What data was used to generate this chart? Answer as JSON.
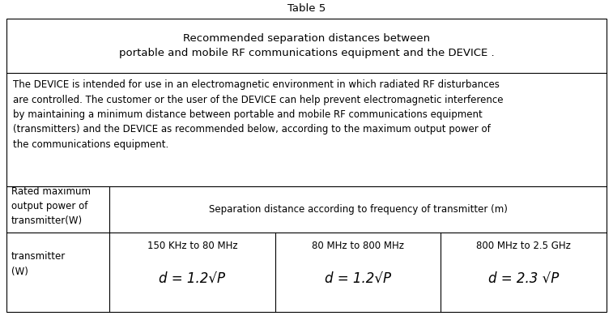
{
  "title": "Table 5",
  "header_text": "Recommended separation distances between\nportable and mobile RF communications equipment and the DEVICE .",
  "description": "The DEVICE is intended for use in an electromagnetic environment in which radiated RF disturbances\nare controlled. The customer or the user of the DEVICE can help prevent electromagnetic interference\nby maintaining a minimum distance between portable and mobile RF communications equipment\n(transmitters) and the DEVICE as recommended below, according to the maximum output power of\nthe communications equipment.",
  "col0_header": "Rated maximum\noutput power of\ntransmitter(W)",
  "col1_header": "Separation distance according to frequency of transmitter (m)",
  "row_col0": "transmitter\n(W)",
  "row_col1_label": "150 KHz to 80 MHz",
  "row_col2_label": "80 MHz to 800 MHz",
  "row_col3_label": "800 MHz to 2.5 GHz",
  "row_col1_formula": "d = 1.2√P",
  "row_col2_formula": "d = 1.2√P",
  "row_col3_formula": "d = 2.3 √P",
  "bg_color": "#ffffff",
  "border_color": "#000000",
  "text_color": "#000000",
  "title_fontsize": 9.5,
  "header_fontsize": 9.5,
  "desc_fontsize": 8.5,
  "cell_fontsize": 8.5,
  "formula_fontsize": 12,
  "fig_width": 7.57,
  "fig_height": 3.95,
  "dpi": 100
}
